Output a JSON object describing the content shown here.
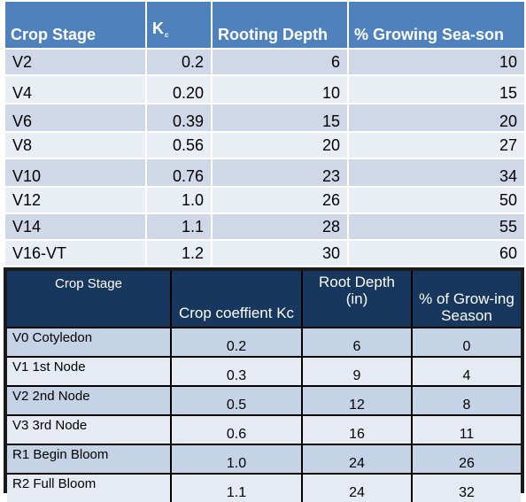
{
  "table_top": {
    "headers": {
      "stage": "Crop Stage",
      "kc": "K",
      "kc_sub": "c",
      "depth": "Rooting Depth",
      "season": "% Growing Sea-son"
    },
    "rows": [
      {
        "stage": "V2",
        "kc": "0.2",
        "depth": "6",
        "season": "10"
      },
      {
        "stage": "V4",
        "kc": "0.20",
        "depth": "10",
        "season": "15"
      },
      {
        "stage": "V6",
        "kc": "0.39",
        "depth": "15",
        "season": "20"
      },
      {
        "stage": "V8",
        "kc": "0.56",
        "depth": "20",
        "season": "27"
      },
      {
        "stage": "V10",
        "kc": "0.76",
        "depth": "23",
        "season": "34"
      },
      {
        "stage": "V12",
        "kc": "1.0",
        "depth": "26",
        "season": "50"
      },
      {
        "stage": "V14",
        "kc": "1.1",
        "depth": "28",
        "season": "55"
      },
      {
        "stage": "V16-VT",
        "kc": "1.2",
        "depth": "30",
        "season": "60"
      }
    ]
  },
  "table_bottom": {
    "headers": {
      "stage": "Crop Stage",
      "kc": "Crop coeffient Kc",
      "depth": "Root Depth (in)",
      "season": "% of Grow-ing Season"
    },
    "rows": [
      {
        "stage": "V0 Cotyledon",
        "kc": "0.2",
        "depth": "6",
        "season": "0"
      },
      {
        "stage": "V1 1st Node",
        "kc": "0.3",
        "depth": "9",
        "season": "4"
      },
      {
        "stage": "V2 2nd Node",
        "kc": "0.5",
        "depth": "12",
        "season": "8"
      },
      {
        "stage": "V3 3rd Node",
        "kc": "0.6",
        "depth": "16",
        "season": "11"
      },
      {
        "stage": "R1 Begin Bloom",
        "kc": "1.0",
        "depth": "24",
        "season": "26"
      },
      {
        "stage": "R2 Full Bloom",
        "kc": "1.1",
        "depth": "24",
        "season": "32"
      }
    ]
  },
  "colors": {
    "top_header": "#4f81bd",
    "top_row_odd": "#d0d8e8",
    "top_row_even": "#e9edf4",
    "bottom_header": "#17375e",
    "bottom_row_odd": "#c5d3e6",
    "bottom_row_even": "#e6ebf3"
  }
}
